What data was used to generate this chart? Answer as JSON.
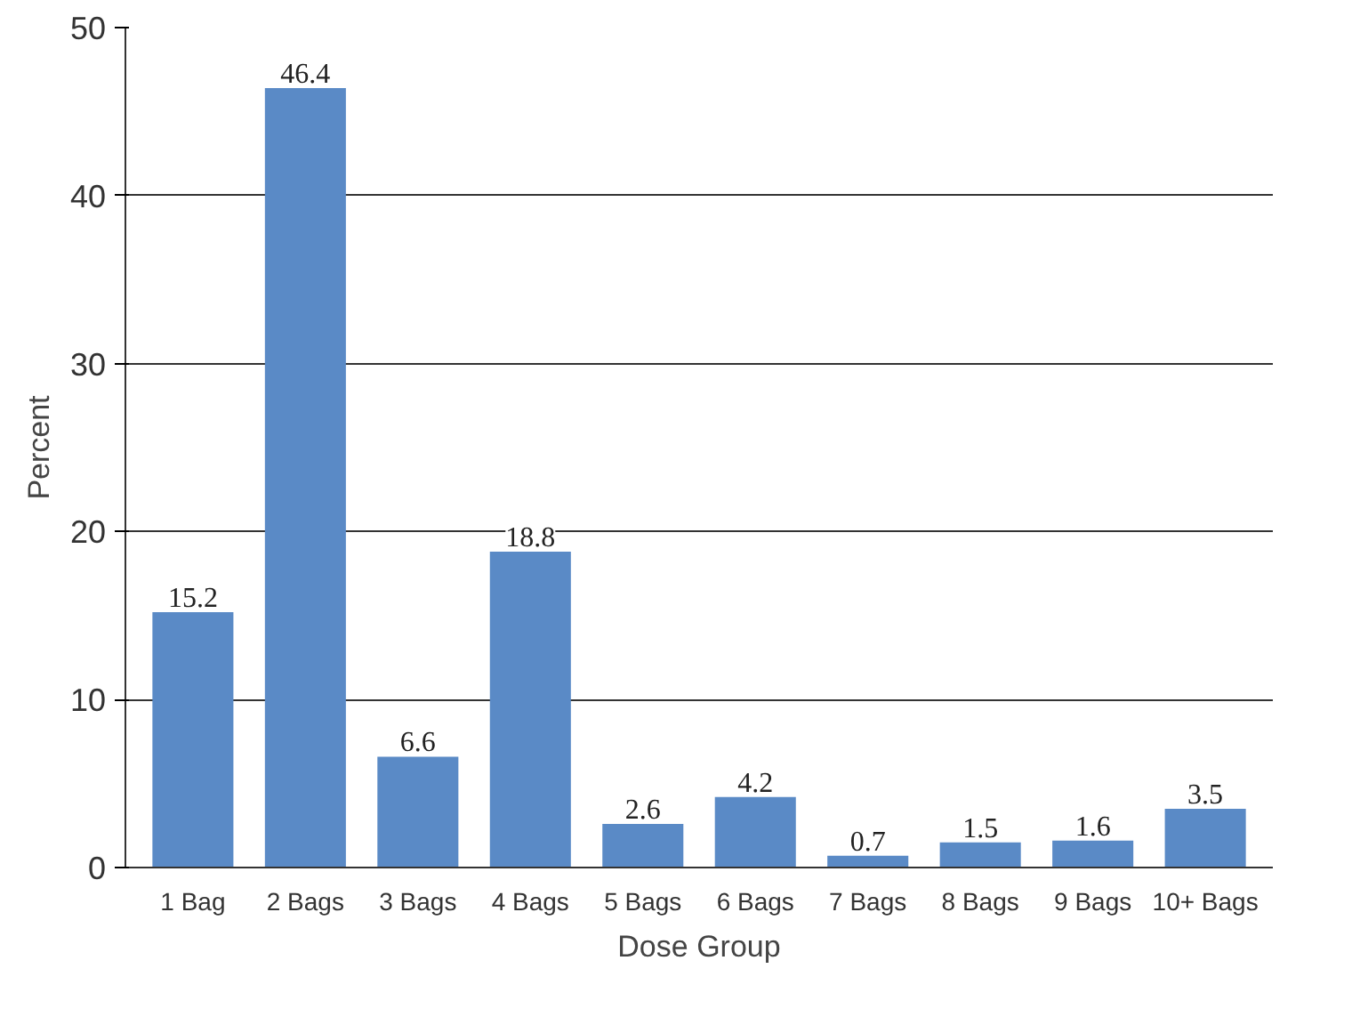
{
  "chart_data": {
    "type": "bar",
    "xlabel": "Dose Group",
    "ylabel": "Percent",
    "categories": [
      "1 Bag",
      "2 Bags",
      "3 Bags",
      "4 Bags",
      "5 Bags",
      "6 Bags",
      "7 Bags",
      "8 Bags",
      "9 Bags",
      "10+ Bags"
    ],
    "values": [
      15.2,
      46.4,
      6.6,
      18.8,
      2.6,
      4.2,
      0.7,
      1.5,
      1.6,
      3.5
    ],
    "color": "#5a8ac6",
    "ylim": [
      0,
      50
    ],
    "yticks": [
      0,
      10,
      20,
      30,
      40,
      50
    ],
    "grid": "y",
    "data_labels": true
  }
}
